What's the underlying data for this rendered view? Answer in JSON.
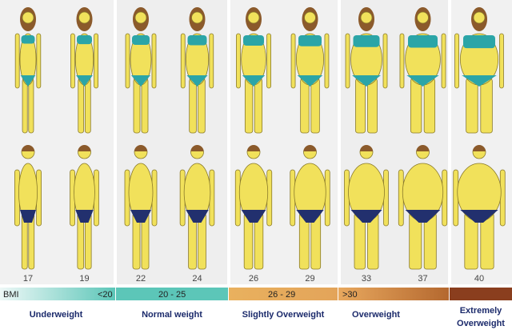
{
  "bmi_values": [
    17,
    19,
    22,
    24,
    26,
    29,
    33,
    37,
    40
  ],
  "bar": {
    "label": "BMI",
    "ranges": [
      "<20",
      "20 - 25",
      "26 - 29",
      ">30"
    ]
  },
  "categories": [
    "Underweight",
    "Normal weight",
    "Slightly Overweight",
    "Overweight",
    "Extremely",
    "Overweight"
  ]
}
